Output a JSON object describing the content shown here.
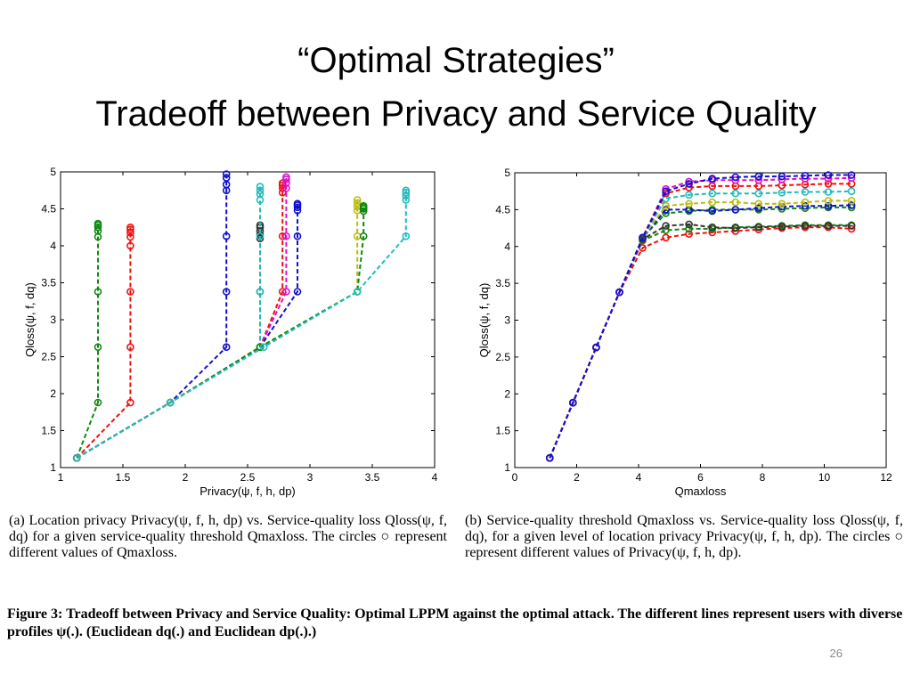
{
  "slide": {
    "title_line1": "“Optimal Strategies”",
    "title_line2": "Tradeoff between Privacy and Service Quality",
    "caption_a": "(a) Location privacy Privacy(ψ, f, h, dp) vs. Service-quality loss Qloss(ψ, f, dq) for a given service-quality threshold Qmaxloss. The circles ○ represent different values of Qmaxloss.",
    "caption_b": "(b) Service-quality threshold Qmaxloss vs. Service-quality loss Qloss(ψ, f, dq), for a given level of location privacy Privacy(ψ, f, h, dp). The circles ○ represent different values of Privacy(ψ, f, h, dp).",
    "figure_caption": "Figure 3: Tradeoff between Privacy and Service Quality: Optimal LPPM against the optimal attack. The different lines represent users with diverse profiles ψ(.). (Euclidean dq(.) and Euclidean dp(.).)",
    "page_number": "26"
  },
  "colors": {
    "green": "#118811",
    "red": "#ee1111",
    "blue": "#1111cc",
    "magenta": "#dd11cc",
    "cyan": "#22bbbb",
    "yellow": "#bbbb11",
    "black": "#333333"
  },
  "chart_data": [
    {
      "type": "line",
      "xlabel": "Privacy(ψ, f, h, dp)",
      "ylabel": "Qloss(ψ, f, dq)",
      "xlim": [
        1,
        4
      ],
      "ylim": [
        1,
        5
      ],
      "xticks": [
        1,
        1.5,
        2,
        2.5,
        3,
        3.5,
        4
      ],
      "yticks": [
        1,
        1.5,
        2,
        2.5,
        3,
        3.5,
        4,
        4.5,
        5
      ],
      "series": [
        {
          "color": "green",
          "x": [
            1.13,
            1.3,
            1.3,
            1.3,
            1.3,
            1.3,
            1.3,
            1.3,
            1.3
          ],
          "y": [
            1.13,
            1.88,
            2.63,
            3.38,
            4.12,
            4.2,
            4.25,
            4.28,
            4.3
          ]
        },
        {
          "color": "red",
          "x": [
            1.13,
            1.56,
            1.56,
            1.56,
            1.56,
            1.56,
            1.56,
            1.56,
            1.56
          ],
          "y": [
            1.13,
            1.88,
            2.63,
            3.38,
            4.0,
            4.12,
            4.18,
            4.22,
            4.25
          ]
        },
        {
          "color": "blue",
          "x": [
            1.13,
            1.88,
            2.33,
            2.33,
            2.33,
            2.33,
            2.33,
            2.33,
            2.33
          ],
          "y": [
            1.13,
            1.88,
            2.63,
            3.38,
            4.13,
            4.75,
            4.83,
            4.92,
            4.97
          ]
        },
        {
          "color": "black",
          "x": [
            1.13,
            1.88,
            2.6,
            2.6,
            2.6,
            2.6,
            2.6,
            2.6,
            2.6
          ],
          "y": [
            1.13,
            1.88,
            2.63,
            3.38,
            4.1,
            4.15,
            4.2,
            4.25,
            4.28
          ]
        },
        {
          "color": "cyan",
          "x": [
            1.13,
            1.88,
            2.6,
            2.6,
            2.6,
            2.6,
            2.6,
            2.6,
            2.6
          ],
          "y": [
            1.13,
            1.88,
            2.63,
            3.38,
            4.13,
            4.62,
            4.7,
            4.75,
            4.8
          ]
        },
        {
          "color": "red",
          "x": [
            1.13,
            1.88,
            2.6,
            2.78,
            2.78,
            2.78,
            2.78,
            2.78,
            2.78
          ],
          "y": [
            1.13,
            1.88,
            2.63,
            3.38,
            4.13,
            4.72,
            4.78,
            4.82,
            4.85
          ]
        },
        {
          "color": "magenta",
          "x": [
            1.13,
            1.88,
            2.6,
            2.81,
            2.81,
            2.81,
            2.81,
            2.81,
            2.81
          ],
          "y": [
            1.13,
            1.88,
            2.63,
            3.38,
            4.13,
            4.78,
            4.85,
            4.9,
            4.93
          ]
        },
        {
          "color": "blue",
          "x": [
            1.13,
            1.88,
            2.6,
            2.9,
            2.9,
            2.9,
            2.9,
            2.9,
            2.9
          ],
          "y": [
            1.13,
            1.88,
            2.63,
            3.38,
            4.13,
            4.48,
            4.52,
            4.55,
            4.57
          ]
        },
        {
          "color": "yellow",
          "x": [
            1.13,
            1.88,
            2.6,
            3.38,
            3.38,
            3.38,
            3.38,
            3.38,
            3.38
          ],
          "y": [
            1.13,
            1.88,
            2.63,
            3.38,
            4.13,
            4.48,
            4.53,
            4.58,
            4.62
          ]
        },
        {
          "color": "green",
          "x": [
            1.13,
            1.88,
            2.6,
            3.38,
            3.43,
            3.43,
            3.43,
            3.43,
            3.43
          ],
          "y": [
            1.13,
            1.88,
            2.63,
            3.38,
            4.13,
            4.47,
            4.5,
            4.52,
            4.54
          ]
        },
        {
          "color": "cyan",
          "x": [
            1.13,
            1.88,
            2.63,
            3.38,
            3.77,
            3.77,
            3.77,
            3.77,
            3.77
          ],
          "y": [
            1.13,
            1.88,
            2.63,
            3.38,
            4.13,
            4.62,
            4.68,
            4.72,
            4.75
          ]
        }
      ]
    },
    {
      "type": "line",
      "xlabel": "Qmaxloss",
      "ylabel": "Qloss(ψ, f, dq)",
      "xlim": [
        0,
        12
      ],
      "ylim": [
        1,
        5
      ],
      "xticks": [
        0,
        2,
        4,
        6,
        8,
        10,
        12
      ],
      "yticks": [
        1,
        1.5,
        2,
        2.5,
        3,
        3.5,
        4,
        4.5,
        5
      ],
      "x": [
        1.13,
        1.88,
        2.63,
        3.38,
        4.13,
        4.88,
        5.63,
        6.38,
        7.13,
        7.88,
        8.63,
        9.38,
        10.13,
        10.88
      ],
      "series": [
        {
          "color": "red",
          "values": [
            1.13,
            1.88,
            2.63,
            3.38,
            3.98,
            4.12,
            4.17,
            4.19,
            4.21,
            4.23,
            4.25,
            4.26,
            4.26,
            4.24
          ]
        },
        {
          "color": "green",
          "values": [
            1.13,
            1.88,
            2.63,
            3.38,
            4.08,
            4.22,
            4.24,
            4.24,
            4.26,
            4.27,
            4.28,
            4.29,
            4.29,
            4.29
          ]
        },
        {
          "color": "black",
          "values": [
            1.13,
            1.88,
            2.63,
            3.38,
            4.1,
            4.28,
            4.3,
            4.26,
            4.25,
            4.26,
            4.27,
            4.28,
            4.28,
            4.28
          ]
        },
        {
          "color": "green",
          "values": [
            1.13,
            1.88,
            2.63,
            3.38,
            4.12,
            4.45,
            4.48,
            4.5,
            4.5,
            4.5,
            4.51,
            4.52,
            4.53,
            4.53
          ]
        },
        {
          "color": "blue",
          "values": [
            1.13,
            1.88,
            2.63,
            3.38,
            4.12,
            4.5,
            4.5,
            4.48,
            4.5,
            4.52,
            4.54,
            4.55,
            4.55,
            4.56
          ]
        },
        {
          "color": "yellow",
          "values": [
            1.13,
            1.88,
            2.63,
            3.38,
            4.12,
            4.55,
            4.58,
            4.6,
            4.6,
            4.58,
            4.58,
            4.6,
            4.62,
            4.62
          ]
        },
        {
          "color": "cyan",
          "values": [
            1.13,
            1.88,
            2.63,
            3.38,
            4.12,
            4.65,
            4.7,
            4.72,
            4.72,
            4.72,
            4.73,
            4.74,
            4.74,
            4.75
          ]
        },
        {
          "color": "red",
          "values": [
            1.13,
            1.88,
            2.63,
            3.38,
            4.12,
            4.72,
            4.8,
            4.82,
            4.82,
            4.82,
            4.83,
            4.84,
            4.85,
            4.85
          ]
        },
        {
          "color": "magenta",
          "values": [
            1.13,
            1.88,
            2.63,
            3.38,
            4.12,
            4.78,
            4.88,
            4.9,
            4.9,
            4.9,
            4.91,
            4.92,
            4.92,
            4.93
          ]
        },
        {
          "color": "blue",
          "values": [
            1.13,
            1.88,
            2.63,
            3.38,
            4.12,
            4.75,
            4.85,
            4.92,
            4.94,
            4.95,
            4.95,
            4.96,
            4.97,
            4.97
          ]
        }
      ]
    }
  ]
}
